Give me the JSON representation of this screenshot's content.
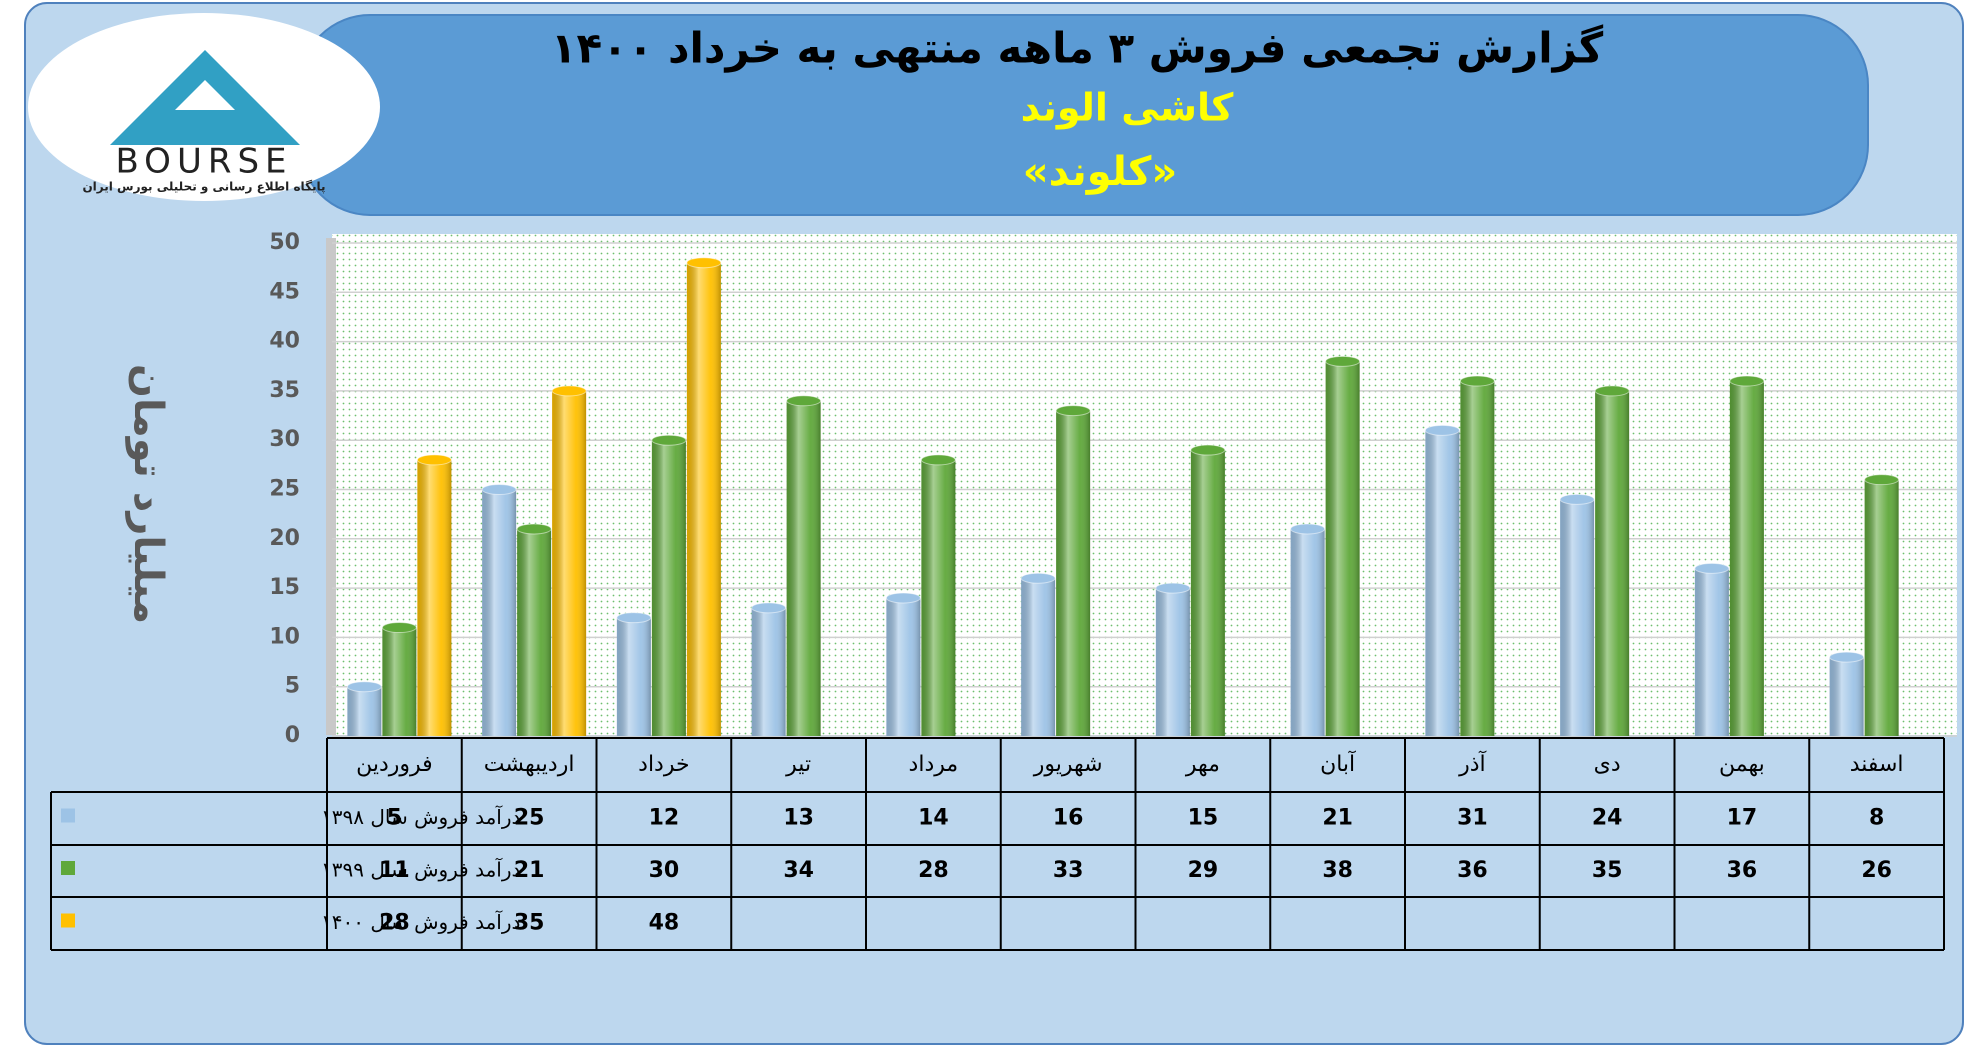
{
  "chart_data": {
    "type": "bar",
    "title": "گزارش تجمعی فروش ۳ ماهه منتهی به خرداد ۱۴۰۰",
    "subtitle": "کاشی الوند",
    "symbol": "«کلوند»",
    "y_label": "میلیارد تومان",
    "categories": [
      "فروردین",
      "اردیبهشت",
      "خرداد",
      "تیر",
      "مرداد",
      "شهریور",
      "مهر",
      "آبان",
      "آذر",
      "دی",
      "بهمن",
      "اسفند"
    ],
    "series": [
      {
        "name": "درآمد فروش سال ۱۳۹۸",
        "color": "#9dc3e6",
        "values": [
          5,
          25,
          12,
          13,
          14,
          16,
          15,
          21,
          31,
          24,
          17,
          8
        ]
      },
      {
        "name": "درآمد فروش سال ۱۳۹۹",
        "color": "#5fa83a",
        "values": [
          11,
          21,
          30,
          34,
          28,
          33,
          29,
          38,
          36,
          35,
          36,
          26
        ]
      },
      {
        "name": "درآمد فروش سال ۱۴۰۰",
        "color": "#ffc000",
        "values": [
          28,
          35,
          48,
          null,
          null,
          null,
          null,
          null,
          null,
          null,
          null,
          null
        ]
      }
    ],
    "ylim": [
      0,
      50
    ],
    "yticks": [
      0,
      5,
      10,
      15,
      20,
      25,
      30,
      35,
      40,
      45,
      50
    ],
    "grid": true
  },
  "logo": {
    "name": "BOURSE",
    "caption": "پایگاه اطلاع رسانی و تحلیلی بورس ایران"
  }
}
